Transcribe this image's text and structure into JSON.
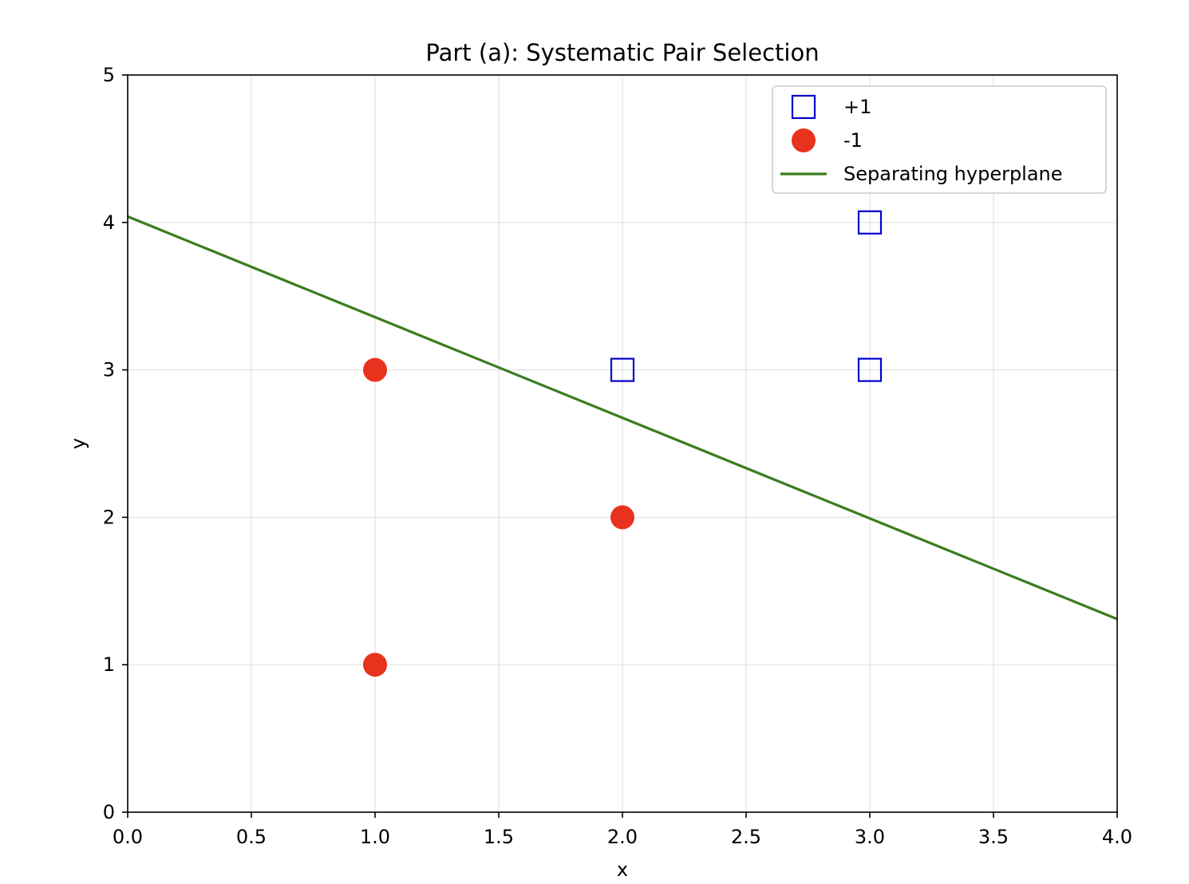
{
  "chart_data": {
    "type": "scatter",
    "title": "Part (a): Systematic Pair Selection",
    "xlabel": "x",
    "ylabel": "y",
    "xlim": [
      0,
      4
    ],
    "ylim": [
      0,
      5
    ],
    "xticks": [
      "0.0",
      "0.5",
      "1.0",
      "1.5",
      "2.0",
      "2.5",
      "3.0",
      "3.5",
      "4.0"
    ],
    "yticks": [
      "0",
      "1",
      "2",
      "3",
      "4",
      "5"
    ],
    "grid": true,
    "legend_position": "top-right",
    "series": [
      {
        "name": "+1",
        "marker": "open-square",
        "color": "#0000cc",
        "points": [
          [
            2,
            3
          ],
          [
            3,
            3
          ],
          [
            3,
            4
          ]
        ]
      },
      {
        "name": "-1",
        "marker": "filled-circle",
        "color": "#e8321e",
        "points": [
          [
            1,
            1
          ],
          [
            1,
            3
          ],
          [
            2,
            2
          ]
        ]
      },
      {
        "name": "Separating hyperplane",
        "marker": "line",
        "color": "#3a7d1f",
        "points": [
          [
            0,
            4.04
          ],
          [
            4,
            1.31
          ]
        ]
      }
    ]
  }
}
